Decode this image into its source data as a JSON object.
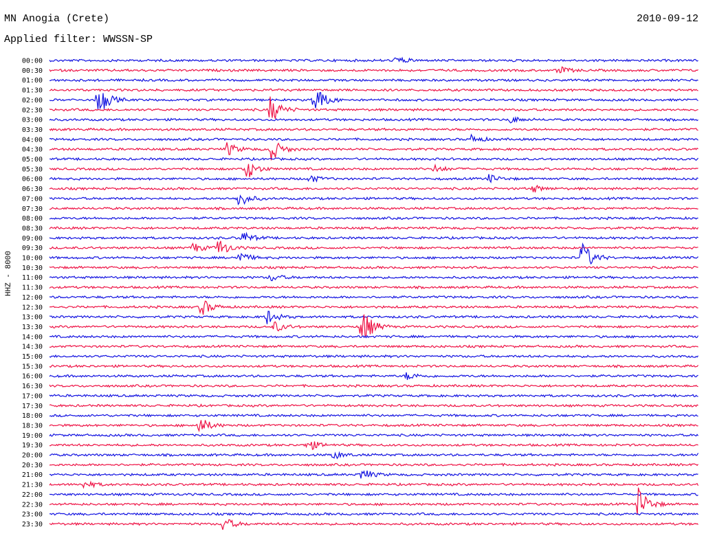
{
  "header": {
    "station": "MN Anogia (Crete)",
    "filter": "Applied filter: WWSSN-SP",
    "date": "2010-09-12",
    "channel": "HHZ - 8000"
  },
  "colors": {
    "even_row": "#1010e0",
    "odd_row": "#ee1144"
  },
  "chart_data": {
    "type": "line",
    "title": "MN Anogia (Crete)",
    "subtitle": "Applied filter: WWSSN-SP",
    "ylabel": "HHZ - 8000",
    "xlabel": "",
    "grid": false,
    "rows": [
      "00:00",
      "00:30",
      "01:00",
      "01:30",
      "02:00",
      "02:30",
      "03:00",
      "03:30",
      "04:00",
      "04:30",
      "05:00",
      "05:30",
      "06:00",
      "06:30",
      "07:00",
      "07:30",
      "08:00",
      "08:30",
      "09:00",
      "09:30",
      "10:00",
      "10:30",
      "11:00",
      "11:30",
      "12:00",
      "12:30",
      "13:00",
      "13:30",
      "14:00",
      "14:30",
      "15:00",
      "15:30",
      "16:00",
      "16:30",
      "17:00",
      "17:30",
      "18:00",
      "18:30",
      "19:00",
      "19:30",
      "20:00",
      "20:30",
      "21:00",
      "21:30",
      "22:00",
      "22:30",
      "23:00",
      "23:30"
    ],
    "events": [
      {
        "row": 0,
        "minute": 16,
        "amplitude": 6
      },
      {
        "row": 1,
        "minute": 23.5,
        "amplitude": 6
      },
      {
        "row": 4,
        "minute": 2.2,
        "amplitude": 28
      },
      {
        "row": 4,
        "minute": 12.2,
        "amplitude": 26
      },
      {
        "row": 5,
        "minute": 10.2,
        "amplitude": 22
      },
      {
        "row": 6,
        "minute": 21.3,
        "amplitude": 5
      },
      {
        "row": 8,
        "minute": 19.5,
        "amplitude": 6
      },
      {
        "row": 9,
        "minute": 8.2,
        "amplitude": 10
      },
      {
        "row": 9,
        "minute": 10.2,
        "amplitude": 20
      },
      {
        "row": 11,
        "minute": 9,
        "amplitude": 20
      },
      {
        "row": 11,
        "minute": 17.8,
        "amplitude": 6
      },
      {
        "row": 12,
        "minute": 12,
        "amplitude": 6
      },
      {
        "row": 12,
        "minute": 20.3,
        "amplitude": 6
      },
      {
        "row": 13,
        "minute": 22.3,
        "amplitude": 6
      },
      {
        "row": 14,
        "minute": 8.7,
        "amplitude": 14
      },
      {
        "row": 18,
        "minute": 8.9,
        "amplitude": 10
      },
      {
        "row": 19,
        "minute": 6.6,
        "amplitude": 8
      },
      {
        "row": 19,
        "minute": 7.8,
        "amplitude": 14
      },
      {
        "row": 20,
        "minute": 8.7,
        "amplitude": 10
      },
      {
        "row": 20,
        "minute": 24.6,
        "amplitude": 26
      },
      {
        "row": 22,
        "minute": 10.2,
        "amplitude": 6
      },
      {
        "row": 25,
        "minute": 7,
        "amplitude": 14
      },
      {
        "row": 26,
        "minute": 10,
        "amplitude": 12
      },
      {
        "row": 27,
        "minute": 14.4,
        "amplitude": 32
      },
      {
        "row": 27,
        "minute": 10.4,
        "amplitude": 8
      },
      {
        "row": 32,
        "minute": 16.5,
        "amplitude": 6
      },
      {
        "row": 37,
        "minute": 6.9,
        "amplitude": 14
      },
      {
        "row": 39,
        "minute": 11.9,
        "amplitude": 10
      },
      {
        "row": 40,
        "minute": 13.1,
        "amplitude": 6
      },
      {
        "row": 40,
        "minute": 30,
        "amplitude": 6
      },
      {
        "row": 42,
        "minute": 14.4,
        "amplitude": 10
      },
      {
        "row": 43,
        "minute": 1.6,
        "amplitude": 6
      },
      {
        "row": 45,
        "minute": 27.2,
        "amplitude": 26
      },
      {
        "row": 47,
        "minute": 8,
        "amplitude": 12
      }
    ]
  }
}
